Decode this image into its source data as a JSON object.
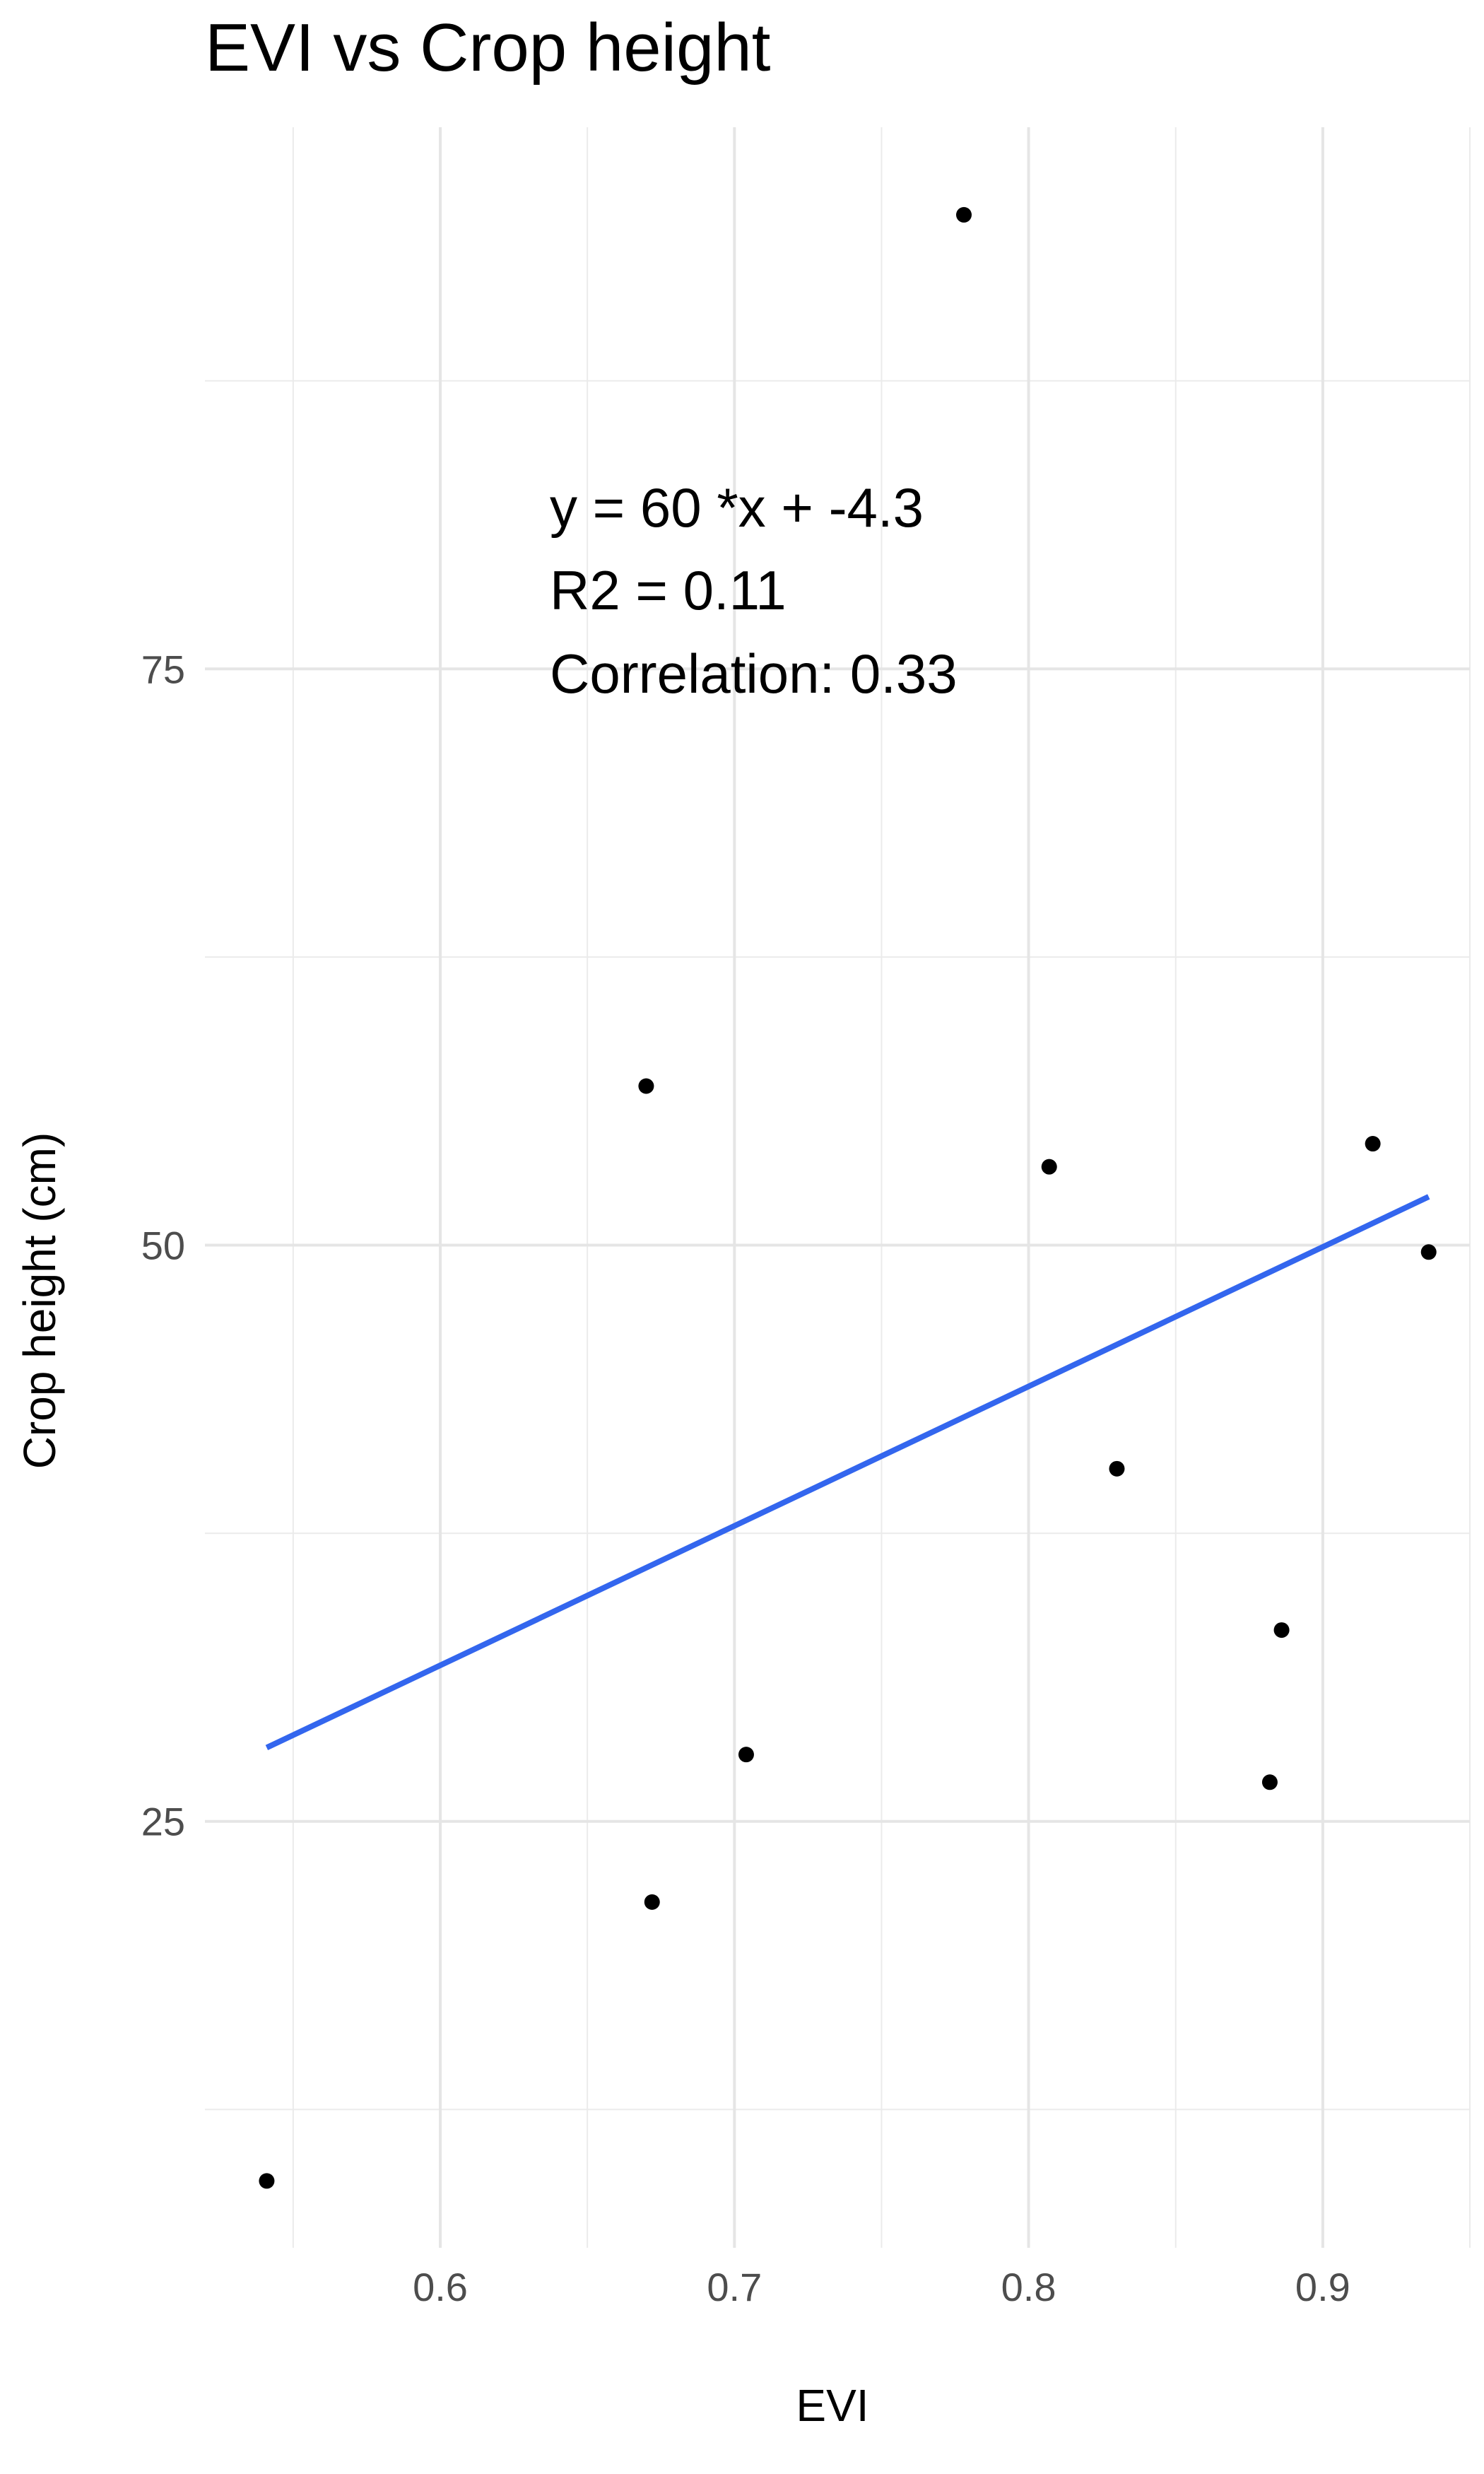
{
  "chart_data": {
    "type": "scatter",
    "title": "EVI vs Crop height",
    "xlabel": "EVI",
    "ylabel": "Crop height (cm)",
    "xlim": [
      0.52,
      0.95
    ],
    "ylim": [
      6.5,
      98.5
    ],
    "xticks": [
      0.6,
      0.7,
      0.8,
      0.9
    ],
    "xtick_labels": [
      "0.6",
      "0.7",
      "0.8",
      "0.9"
    ],
    "yticks": [
      25,
      50,
      75
    ],
    "ytick_labels": [
      "25",
      "50",
      "75"
    ],
    "grid": true,
    "points": [
      {
        "x": 0.541,
        "y": 9.4
      },
      {
        "x": 0.67,
        "y": 56.9
      },
      {
        "x": 0.672,
        "y": 21.5
      },
      {
        "x": 0.704,
        "y": 27.9
      },
      {
        "x": 0.778,
        "y": 94.7
      },
      {
        "x": 0.807,
        "y": 53.4
      },
      {
        "x": 0.83,
        "y": 40.3
      },
      {
        "x": 0.882,
        "y": 26.7
      },
      {
        "x": 0.886,
        "y": 33.3
      },
      {
        "x": 0.917,
        "y": 54.4
      },
      {
        "x": 0.936,
        "y": 49.7
      }
    ],
    "fit_line": {
      "x": [
        0.541,
        0.936
      ],
      "y": [
        28.2,
        52.1
      ],
      "color": "#3366ee"
    },
    "point_color": "#000000",
    "annotations": [
      "y = 60 *x + -4.3",
      "R2 = 0.11",
      "Correlation: 0.33"
    ]
  }
}
